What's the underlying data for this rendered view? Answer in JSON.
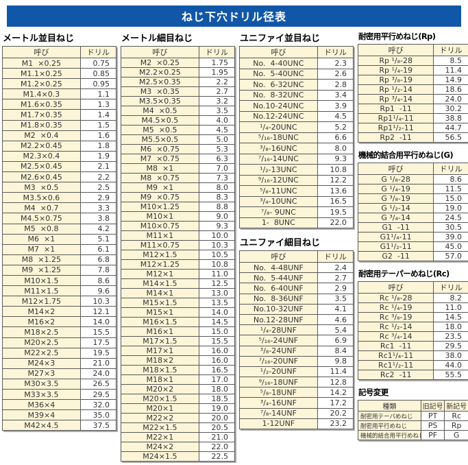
{
  "title": "ねじ下穴ドリル径表",
  "col_headers": {
    "name": "呼び",
    "drill": "ドリル"
  },
  "colors": {
    "banner_blue": "#1157a8",
    "cell_cream": "#fcf5d8"
  },
  "tables": {
    "metric_coarse": {
      "title": "メートル並目ねじ",
      "rows": [
        [
          "M1  ×0.25",
          "0.75"
        ],
        [
          "M1.1×0.25",
          "0.85"
        ],
        [
          "M1.2×0.25",
          "0.95"
        ],
        [
          "M1.4×0.3",
          "1.1"
        ],
        [
          "M1.6×0.35",
          "1.3"
        ],
        [
          "M1.7×0.35",
          "1.4"
        ],
        [
          "M1.8×0.35",
          "1.5"
        ],
        [
          "M2  ×0.4",
          "1.6"
        ],
        [
          "M2.2×0.45",
          "1.8"
        ],
        [
          "M2.3×0.4",
          "1.9"
        ],
        [
          "M2.5×0.45",
          "2.1"
        ],
        [
          "M2.6×0.45",
          "2.2"
        ],
        [
          "M3  ×0.5",
          "2.5"
        ],
        [
          "M3.5×0.6",
          "2.9"
        ],
        [
          "M4  ×0.7",
          "3.3"
        ],
        [
          "M4.5×0.75",
          "3.8"
        ],
        [
          "M5  ×0.8",
          "4.2"
        ],
        [
          "M6  ×1",
          "5.1"
        ],
        [
          "M7  ×1",
          "6.1"
        ],
        [
          "M8  ×1.25",
          "6.8"
        ],
        [
          "M9  ×1.25",
          "7.8"
        ],
        [
          "M10×1.5",
          "8.6"
        ],
        [
          "M11×1.5",
          "9.6"
        ],
        [
          "M12×1.75",
          "10.3"
        ],
        [
          "M14×2",
          "12.1"
        ],
        [
          "M16×2",
          "14.0"
        ],
        [
          "M18×2.5",
          "15.5"
        ],
        [
          "M20×2.5",
          "17.5"
        ],
        [
          "M22×2.5",
          "19.5"
        ],
        [
          "M24×3",
          "21.0"
        ],
        [
          "M27×3",
          "24.0"
        ],
        [
          "M30×3.5",
          "26.5"
        ],
        [
          "M33×3.5",
          "29.5"
        ],
        [
          "M36×4",
          "32.0"
        ],
        [
          "M39×4",
          "35.0"
        ],
        [
          "M42×4.5",
          "37.5"
        ]
      ]
    },
    "metric_fine": {
      "title": "メートル細目ねじ",
      "rows": [
        [
          "M2  ×0.25",
          "1.75"
        ],
        [
          "M2.2×0.25",
          "1.95"
        ],
        [
          "M2.5×0.35",
          "2.2"
        ],
        [
          "M3  ×0.35",
          "2.7"
        ],
        [
          "M3.5×0.35",
          "3.2"
        ],
        [
          "M4  ×0.5",
          "3.5"
        ],
        [
          "M4.5×0.5",
          "4.0"
        ],
        [
          "M5  ×0.5",
          "4.5"
        ],
        [
          "M5.5×0.5",
          "5.0"
        ],
        [
          "M6  ×0.75",
          "5.3"
        ],
        [
          "M7  ×0.75",
          "6.3"
        ],
        [
          "M8  ×1",
          "7.0"
        ],
        [
          "M8  ×0.75",
          "7.3"
        ],
        [
          "M9  ×1",
          "8.0"
        ],
        [
          "M9  ×0.75",
          "8.3"
        ],
        [
          "M10×1.25",
          "8.8"
        ],
        [
          "M10×1",
          "9.0"
        ],
        [
          "M10×0.75",
          "9.3"
        ],
        [
          "M11×1",
          "10.0"
        ],
        [
          "M11×0.75",
          "10.3"
        ],
        [
          "M12×1.5",
          "10.5"
        ],
        [
          "M12×1.25",
          "10.8"
        ],
        [
          "M12×1",
          "11.0"
        ],
        [
          "M14×1.5",
          "12.5"
        ],
        [
          "M14×1",
          "13.0"
        ],
        [
          "M15×1.5",
          "13.5"
        ],
        [
          "M15×1",
          "14.0"
        ],
        [
          "M16×1.5",
          "14.5"
        ],
        [
          "M16×1",
          "15.0"
        ],
        [
          "M17×1.5",
          "15.5"
        ],
        [
          "M17×1",
          "16.0"
        ],
        [
          "M18×2",
          "16.0"
        ],
        [
          "M18×1.5",
          "16.5"
        ],
        [
          "M18×1",
          "17.0"
        ],
        [
          "M20×2",
          "18.0"
        ],
        [
          "M20×1.5",
          "18.5"
        ],
        [
          "M20×1",
          "19.0"
        ],
        [
          "M22×2",
          "20.0"
        ],
        [
          "M22×1.5",
          "20.5"
        ],
        [
          "M22×1",
          "21.0"
        ],
        [
          "M24×2",
          "22.0"
        ],
        [
          "M24×1.5",
          "22.5"
        ]
      ]
    },
    "unified_coarse": {
      "title": "ユニファイ並目ねじ",
      "rows": [
        [
          "No.  4-40UNC",
          "2.3"
        ],
        [
          "No.  5-40UNC",
          "2.6"
        ],
        [
          "No.  6-32UNC",
          "2.8"
        ],
        [
          "No.  8-32UNC",
          "3.4"
        ],
        [
          "No.10-24UNC",
          "3.9"
        ],
        [
          "No.12-24UNC",
          "4.5"
        ],
        [
          "¹/₄-20UNC",
          "5.2"
        ],
        [
          "⁵/₁₆-18UNC",
          "6.6"
        ],
        [
          "³/₈-16UNC",
          "8.0"
        ],
        [
          "⁷/₁₆-14UNC",
          "9.3"
        ],
        [
          "¹/₂-13UNC",
          "10.8"
        ],
        [
          "⁹/₁₆-12UNC",
          "12.2"
        ],
        [
          "⁵/₈-11UNC",
          "13.6"
        ],
        [
          "³/₄-10UNC",
          "16.5"
        ],
        [
          "⁷/₈- 9UNC",
          "19.5"
        ],
        [
          "1-  8UNC",
          "22.0"
        ]
      ]
    },
    "unified_fine": {
      "title": "ユニファイ細目ねじ",
      "rows": [
        [
          "No.  4-48UNF",
          "2.4"
        ],
        [
          "No.  5-44UNF",
          "2.7"
        ],
        [
          "No.  6-40UNF",
          "2.9"
        ],
        [
          "No.  8-36UNF",
          "3.5"
        ],
        [
          "No.10-32UNF",
          "4.1"
        ],
        [
          "No.12-28UNF",
          "4.6"
        ],
        [
          "¹/₄-28UNF",
          "5.4"
        ],
        [
          "⁵/₁₆-24UNF",
          "6.9"
        ],
        [
          "³/₈-24UNF",
          "8.4"
        ],
        [
          "⁷/₁₆-20UNF",
          "9.8"
        ],
        [
          "¹/₂-20UNF",
          "11.4"
        ],
        [
          "⁹/₁₆-18UNF",
          "12.8"
        ],
        [
          "⁵/₈-18UNF",
          "14.2"
        ],
        [
          "³/₄-16UNF",
          "17.2"
        ],
        [
          "⁷/₈-14UNF",
          "20.2"
        ],
        [
          "1-12UNF",
          "23.2"
        ]
      ]
    },
    "rp": {
      "title": "耐密用平行めねじ(Rp)",
      "rows": [
        [
          "Rp ¹/₈-28",
          "8.5"
        ],
        [
          "Rp ¹/₄-19",
          "11.4"
        ],
        [
          "Rp ³/₈-19",
          "14.9"
        ],
        [
          "Rp ¹/₂-14",
          "18.6"
        ],
        [
          "Rp ³/₄-14",
          "24.0"
        ],
        [
          "Rp1  -11",
          "30.2"
        ],
        [
          "Rp1¹/₄-11",
          "38.8"
        ],
        [
          "Rp1¹/₂-11",
          "44.7"
        ],
        [
          "Rp2  -11",
          "56.5"
        ]
      ]
    },
    "g": {
      "title": "機械的結合用平行めねじ(G)",
      "rows": [
        [
          "G ¹/₈-28",
          "8.6"
        ],
        [
          "G ¹/₄-19",
          "11.5"
        ],
        [
          "G ³/₈-19",
          "15.0"
        ],
        [
          "G ¹/₂-14",
          "19.0"
        ],
        [
          "G ³/₄-14",
          "24.5"
        ],
        [
          "G1  -11",
          "30.5"
        ],
        [
          "G1¹/₄-11",
          "39.0"
        ],
        [
          "G1¹/₂-11",
          "45.0"
        ],
        [
          "G2  -11",
          "57.0"
        ]
      ]
    },
    "rc": {
      "title": "耐密用テーパーめねじ(Rc)",
      "rows": [
        [
          "Rc ¹/₈-28",
          "8.2"
        ],
        [
          "Rc ¹/₄-19",
          "11.0"
        ],
        [
          "Rc ³/₈-19",
          "14.5"
        ],
        [
          "Rc ¹/₂-14",
          "18.0"
        ],
        [
          "Rc ³/₄-14",
          "23.5"
        ],
        [
          "Rc1  -11",
          "29.5"
        ],
        [
          "Rc1¹/₄-11",
          "38.0"
        ],
        [
          "Rc1¹/₂-11",
          "44.0"
        ],
        [
          "Rc2  -11",
          "55.5"
        ]
      ]
    }
  },
  "symbol_change": {
    "title": "記号変更",
    "headers": [
      "種類",
      "旧記号",
      "新記号"
    ],
    "rows": [
      [
        "耐密用テーパめねじ",
        "PT",
        "Rc"
      ],
      [
        "耐密用平行めねじ",
        "PS",
        "Rp"
      ],
      [
        "機械的結合用平行めねじ",
        "PF",
        "G"
      ]
    ]
  }
}
